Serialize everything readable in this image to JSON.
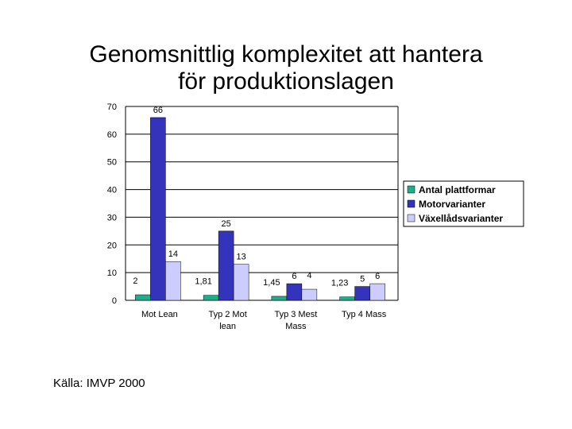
{
  "title_lines": [
    "Genomsnittlig komplexitet att hantera",
    "för produktionslagen"
  ],
  "source": "Källa: IMVP 2000",
  "chart_data": {
    "type": "bar",
    "categories": [
      [
        "Mot Lean"
      ],
      [
        "Typ 2 Mot",
        "lean"
      ],
      [
        "Typ 3 Mest",
        "Mass"
      ],
      [
        "Typ 4 Mass"
      ]
    ],
    "series": [
      {
        "name": "Antal plattformar",
        "color": "#1fae8c",
        "values": [
          2,
          1.81,
          1.45,
          1.23
        ],
        "labels": [
          "2",
          "1,81",
          "1,45",
          "1,23"
        ]
      },
      {
        "name": "Motorvarianter",
        "color": "#3333bb",
        "values": [
          66,
          25,
          6,
          5
        ],
        "labels": [
          "66",
          "25",
          "6",
          "5"
        ]
      },
      {
        "name": "Växellådsvarianter",
        "color": "#ccccff",
        "values": [
          14,
          13,
          4,
          6
        ],
        "labels": [
          "14",
          "13",
          "4",
          "6"
        ]
      }
    ],
    "yticks": [
      0,
      10,
      20,
      30,
      40,
      50,
      60,
      70
    ],
    "ylim": [
      0,
      70
    ],
    "grid": true,
    "legend": "right"
  }
}
